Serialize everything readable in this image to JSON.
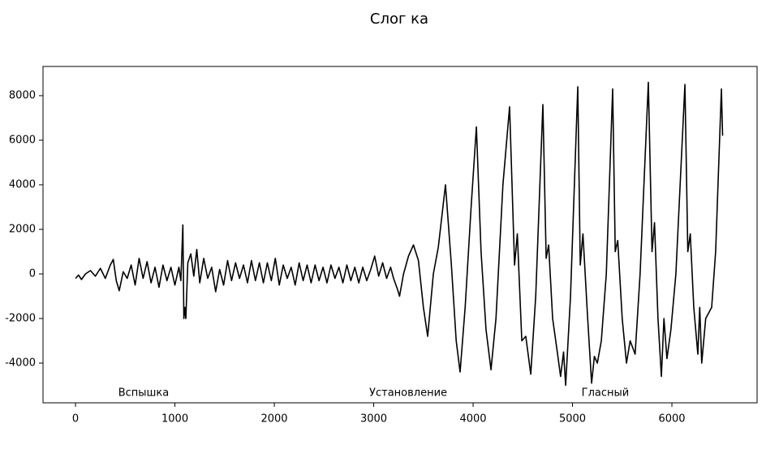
{
  "chart_data": {
    "type": "line",
    "title": "Слог ка",
    "x": [
      0,
      30,
      60,
      100,
      150,
      200,
      250,
      300,
      350,
      380,
      410,
      440,
      480,
      520,
      560,
      600,
      640,
      680,
      720,
      760,
      800,
      840,
      880,
      920,
      960,
      1000,
      1040,
      1060,
      1080,
      1090,
      1100,
      1110,
      1130,
      1160,
      1190,
      1220,
      1250,
      1290,
      1330,
      1370,
      1410,
      1450,
      1490,
      1530,
      1570,
      1610,
      1650,
      1690,
      1730,
      1770,
      1810,
      1850,
      1890,
      1930,
      1970,
      2010,
      2050,
      2090,
      2130,
      2170,
      2210,
      2250,
      2290,
      2330,
      2370,
      2410,
      2450,
      2490,
      2530,
      2570,
      2610,
      2650,
      2690,
      2730,
      2770,
      2810,
      2850,
      2890,
      2930,
      2970,
      3010,
      3050,
      3090,
      3130,
      3170,
      3200,
      3240,
      3260,
      3300,
      3350,
      3400,
      3450,
      3500,
      3543,
      3600,
      3650,
      3722,
      3780,
      3830,
      3869,
      3920,
      3980,
      4033,
      4080,
      4130,
      4180,
      4230,
      4300,
      4367,
      4417,
      4445,
      4490,
      4530,
      4580,
      4630,
      4702,
      4735,
      4760,
      4800,
      4850,
      4880,
      4910,
      4931,
      4980,
      5053,
      5078,
      5105,
      5150,
      5192,
      5220,
      5250,
      5290,
      5340,
      5404,
      5430,
      5455,
      5500,
      5543,
      5580,
      5630,
      5680,
      5763,
      5800,
      5825,
      5860,
      5894,
      5920,
      5950,
      5990,
      6040,
      6131,
      6160,
      6185,
      6220,
      6261,
      6280,
      6300,
      6340,
      6400,
      6440,
      6498,
      6510
    ],
    "series": [
      {
        "color": "#000000",
        "values": [
          -200,
          -50,
          -250,
          0,
          150,
          -100,
          250,
          -200,
          400,
          650,
          -300,
          -750,
          100,
          -200,
          400,
          -500,
          700,
          -200,
          550,
          -400,
          300,
          -600,
          400,
          -300,
          300,
          -500,
          300,
          -300,
          2200,
          -2000,
          -1500,
          -2000,
          500,
          900,
          -100,
          1100,
          -400,
          700,
          -200,
          300,
          -800,
          200,
          -500,
          600,
          -300,
          500,
          -200,
          400,
          -400,
          600,
          -300,
          500,
          -400,
          500,
          -300,
          700,
          -500,
          400,
          -200,
          300,
          -500,
          500,
          -300,
          400,
          -400,
          400,
          -300,
          300,
          -400,
          400,
          -200,
          300,
          -400,
          400,
          -300,
          300,
          -400,
          300,
          -300,
          200,
          800,
          -100,
          500,
          -200,
          300,
          -200,
          -700,
          -1000,
          0,
          800,
          1300,
          600,
          -1500,
          -2800,
          0,
          1200,
          4000,
          500,
          -3000,
          -4400,
          -1500,
          3000,
          6600,
          1000,
          -2500,
          -4300,
          -2000,
          4000,
          7500,
          400,
          1800,
          -3000,
          -2800,
          -4500,
          -1000,
          7600,
          700,
          1300,
          -2000,
          -3600,
          -4600,
          -3500,
          -5000,
          -1000,
          8400,
          400,
          1800,
          -1800,
          -4900,
          -3700,
          -4000,
          -3000,
          0,
          8300,
          1000,
          1500,
          -2000,
          -4000,
          -3000,
          -3600,
          0,
          8600,
          1000,
          2300,
          -2000,
          -4600,
          -2000,
          -3800,
          -2500,
          0,
          8500,
          1000,
          1800,
          -1500,
          -3600,
          -1500,
          -4000,
          -2000,
          -1500,
          1000,
          8300,
          6200
        ]
      }
    ],
    "xlim": [
      -327,
      6857
    ],
    "ylim": [
      -5782,
      9309
    ],
    "xticks": [
      0,
      1000,
      2000,
      3000,
      4000,
      5000,
      6000
    ],
    "yticks": [
      -4000,
      -2000,
      0,
      2000,
      4000,
      6000,
      8000
    ],
    "annotations": [
      {
        "text": "Вспышка",
        "x": 685,
        "y": -5345
      },
      {
        "text": "Установление",
        "x": 3347,
        "y": -5345
      },
      {
        "text": "Гласный",
        "x": 5330,
        "y": -5345
      }
    ]
  }
}
